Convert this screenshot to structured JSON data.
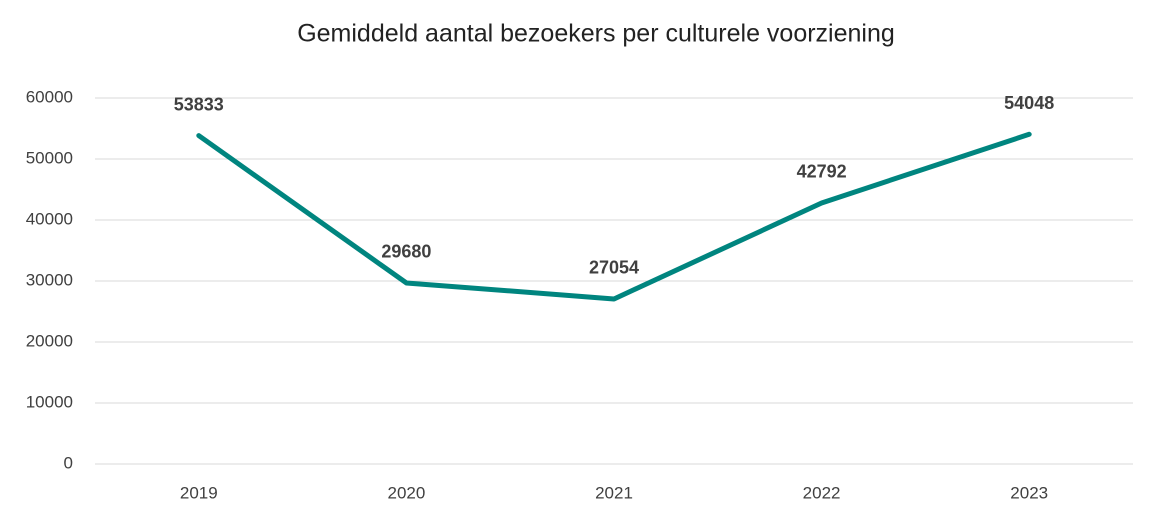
{
  "chart_data": {
    "type": "line",
    "title": "Gemiddeld aantal bezoekers per culturele voorziening",
    "categories": [
      "2019",
      "2020",
      "2021",
      "2022",
      "2023"
    ],
    "values": [
      53833,
      29680,
      27054,
      42792,
      54048
    ],
    "color": "#00857f",
    "ylim": [
      0,
      60000
    ],
    "yticks": [
      0,
      10000,
      20000,
      30000,
      40000,
      50000,
      60000
    ],
    "grid": true
  }
}
